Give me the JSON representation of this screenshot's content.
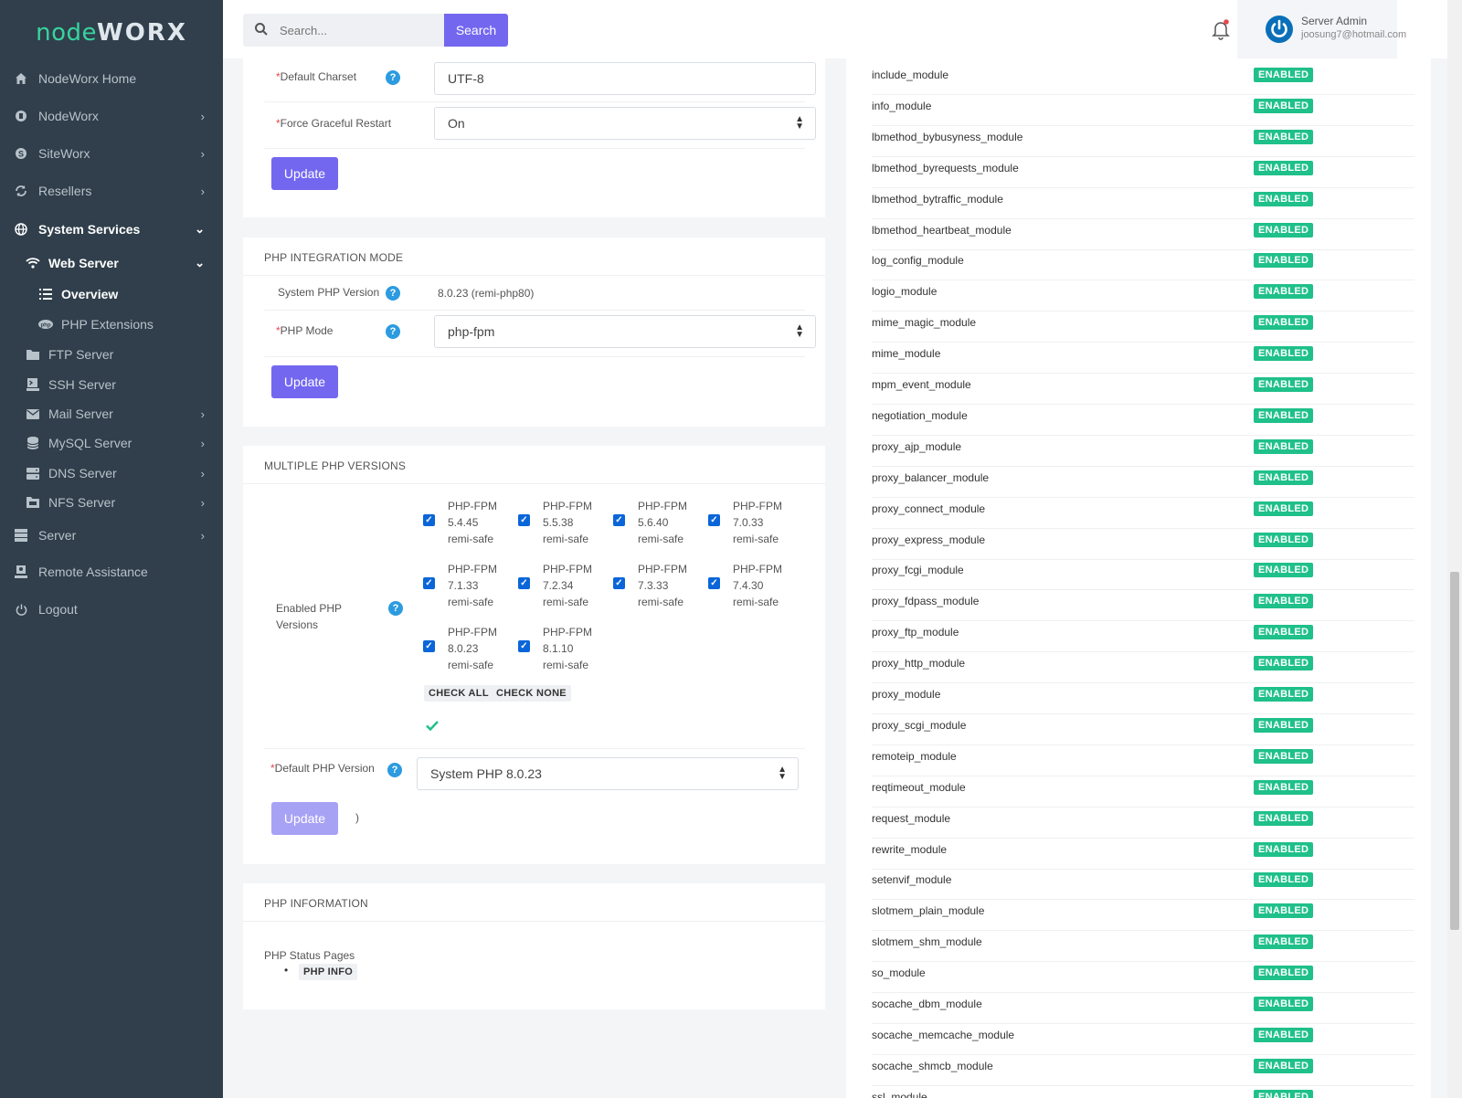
{
  "app": {
    "logo_part1": "node",
    "logo_part2": "WORX"
  },
  "sidebar": {
    "items": [
      {
        "label": "NodeWorx Home",
        "icon": "home-icon"
      },
      {
        "label": "NodeWorx",
        "icon": "nodeworx-icon"
      },
      {
        "label": "SiteWorx",
        "icon": "siteworx-icon"
      },
      {
        "label": "Resellers",
        "icon": "resellers-icon"
      },
      {
        "label": "System Services",
        "icon": "globe-icon"
      },
      {
        "label": "Web Server",
        "icon": "wifi-icon"
      },
      {
        "label": "Overview",
        "icon": "list-icon"
      },
      {
        "label": "PHP Extensions",
        "icon": "php-icon"
      },
      {
        "label": "FTP Server",
        "icon": "folder-icon"
      },
      {
        "label": "SSH Server",
        "icon": "terminal-icon"
      },
      {
        "label": "Mail Server",
        "icon": "mail-icon"
      },
      {
        "label": "MySQL Server",
        "icon": "database-icon"
      },
      {
        "label": "DNS Server",
        "icon": "dns-icon"
      },
      {
        "label": "NFS Server",
        "icon": "nfs-icon"
      },
      {
        "label": "Server",
        "icon": "server-icon"
      },
      {
        "label": "Remote Assistance",
        "icon": "remote-assistance-icon"
      },
      {
        "label": "Logout",
        "icon": "power-icon"
      }
    ]
  },
  "topbar": {
    "search_placeholder": "Search...",
    "search_button": "Search",
    "user_name": "Server Admin",
    "user_email": "joosung7@hotmail.com"
  },
  "general": {
    "charset_label": "Default Charset",
    "charset_value": "UTF-8",
    "restart_label": "Force Graceful Restart",
    "restart_value": "On",
    "update": "Update"
  },
  "integration": {
    "title": "PHP INTEGRATION MODE",
    "system_php_label": "System PHP Version",
    "system_php_value": "8.0.23 (remi-php80)",
    "mode_label": "PHP Mode",
    "mode_value": "php-fpm",
    "update": "Update"
  },
  "multiple": {
    "title": "MULTIPLE PHP VERSIONS",
    "enabled_label": "Enabled PHP Versions",
    "versions": [
      {
        "name": "PHP-FPM",
        "ver": "5.4.45",
        "tag": "remi-safe",
        "checked": true
      },
      {
        "name": "PHP-FPM",
        "ver": "5.5.38",
        "tag": "remi-safe",
        "checked": true
      },
      {
        "name": "PHP-FPM",
        "ver": "5.6.40",
        "tag": "remi-safe",
        "checked": true
      },
      {
        "name": "PHP-FPM",
        "ver": "7.0.33",
        "tag": "remi-safe",
        "checked": true
      },
      {
        "name": "PHP-FPM",
        "ver": "7.1.33",
        "tag": "remi-safe",
        "checked": true
      },
      {
        "name": "PHP-FPM",
        "ver": "7.2.34",
        "tag": "remi-safe",
        "checked": true
      },
      {
        "name": "PHP-FPM",
        "ver": "7.3.33",
        "tag": "remi-safe",
        "checked": true
      },
      {
        "name": "PHP-FPM",
        "ver": "7.4.30",
        "tag": "remi-safe",
        "checked": true
      },
      {
        "name": "PHP-FPM",
        "ver": "8.0.23",
        "tag": "remi-safe",
        "checked": true
      },
      {
        "name": "PHP-FPM",
        "ver": "8.1.10",
        "tag": "remi-safe",
        "checked": true
      }
    ],
    "check_all": "CHECK ALL",
    "check_none": "CHECK NONE",
    "default_label": "Default PHP Version",
    "default_value": "System PHP 8.0.23",
    "update": "Update",
    "loading_glyph": ")"
  },
  "info": {
    "title": "PHP INFORMATION",
    "status_pages_label": "PHP Status Pages",
    "php_info_link": "PHP INFO"
  },
  "modules": {
    "status_label": "ENABLED",
    "items": [
      "include_module",
      "info_module",
      "lbmethod_bybusyness_module",
      "lbmethod_byrequests_module",
      "lbmethod_bytraffic_module",
      "lbmethod_heartbeat_module",
      "log_config_module",
      "logio_module",
      "mime_magic_module",
      "mime_module",
      "mpm_event_module",
      "negotiation_module",
      "proxy_ajp_module",
      "proxy_balancer_module",
      "proxy_connect_module",
      "proxy_express_module",
      "proxy_fcgi_module",
      "proxy_fdpass_module",
      "proxy_ftp_module",
      "proxy_http_module",
      "proxy_module",
      "proxy_scgi_module",
      "remoteip_module",
      "reqtimeout_module",
      "request_module",
      "rewrite_module",
      "setenvif_module",
      "slotmem_plain_module",
      "slotmem_shm_module",
      "so_module",
      "socache_dbm_module",
      "socache_memcache_module",
      "socache_shmcb_module",
      "ssl_module"
    ]
  },
  "colors": {
    "sidebar_bg": "#303f4b",
    "accent": "#7367f0",
    "enabled_badge": "#1fc08a",
    "help_icon": "#2c9be0"
  }
}
